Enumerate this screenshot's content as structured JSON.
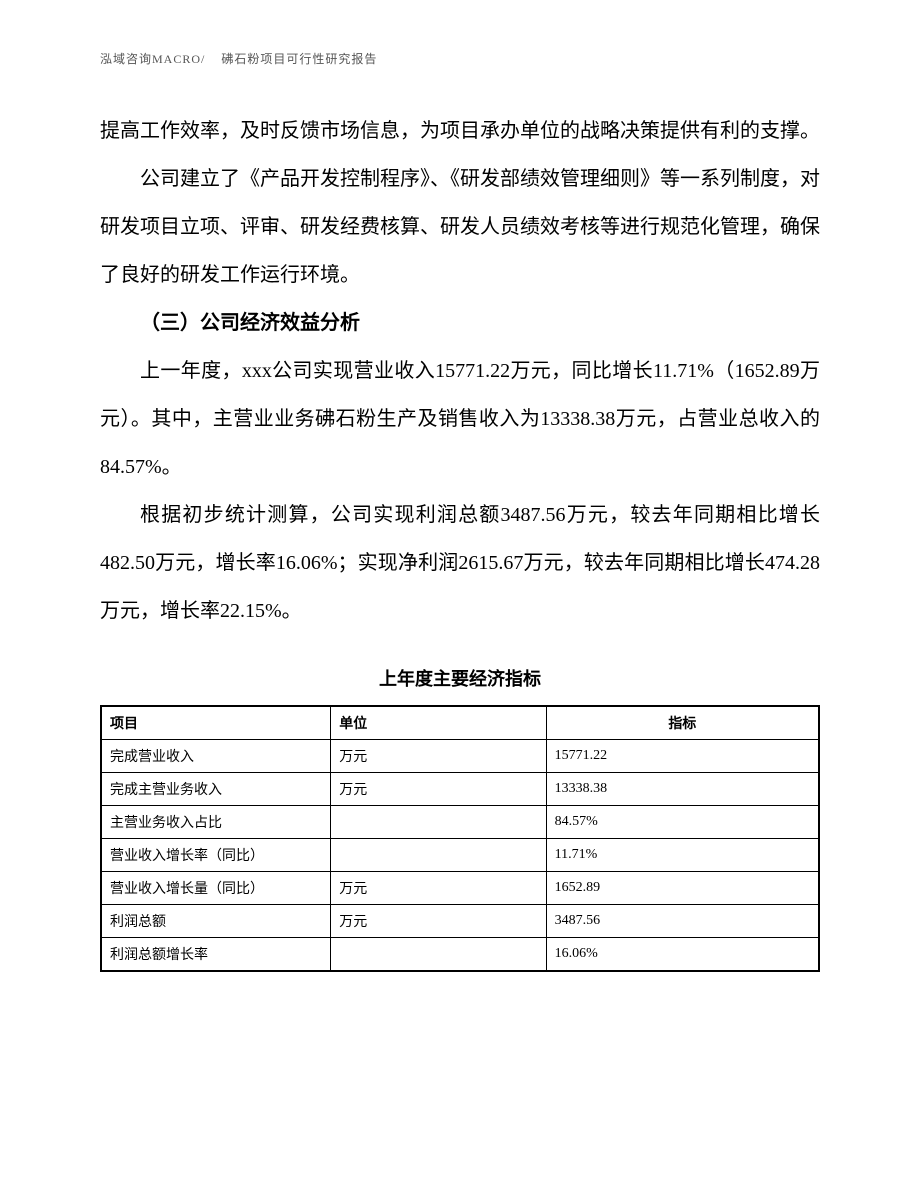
{
  "header": {
    "left": "泓域咨询MACRO/",
    "right": "砩石粉项目可行性研究报告"
  },
  "paragraphs": {
    "p1": "提高工作效率，及时反馈市场信息，为项目承办单位的战略决策提供有利的支撑。",
    "p2": "公司建立了《产品开发控制程序》、《研发部绩效管理细则》等一系列制度，对研发项目立项、评审、研发经费核算、研发人员绩效考核等进行规范化管理，确保了良好的研发工作运行环境。",
    "h3": "（三）公司经济效益分析",
    "p3": "上一年度，xxx公司实现营业收入15771.22万元，同比增长11.71%（1652.89万元）。其中，主营业业务砩石粉生产及销售收入为13338.38万元，占营业总收入的84.57%。",
    "p4": "根据初步统计测算，公司实现利润总额3487.56万元，较去年同期相比增长482.50万元，增长率16.06%；实现净利润2615.67万元，较去年同期相比增长474.28万元，增长率22.15%。"
  },
  "table": {
    "title": "上年度主要经济指标",
    "columns": [
      "项目",
      "单位",
      "指标"
    ],
    "rows": [
      [
        "完成营业收入",
        "万元",
        "15771.22"
      ],
      [
        "完成主营业务收入",
        "万元",
        "13338.38"
      ],
      [
        "主营业务收入占比",
        "",
        "84.57%"
      ],
      [
        "营业收入增长率（同比）",
        "",
        "11.71%"
      ],
      [
        "营业收入增长量（同比）",
        "万元",
        "1652.89"
      ],
      [
        "利润总额",
        "万元",
        "3487.56"
      ],
      [
        "利润总额增长率",
        "",
        "16.06%"
      ]
    ]
  }
}
